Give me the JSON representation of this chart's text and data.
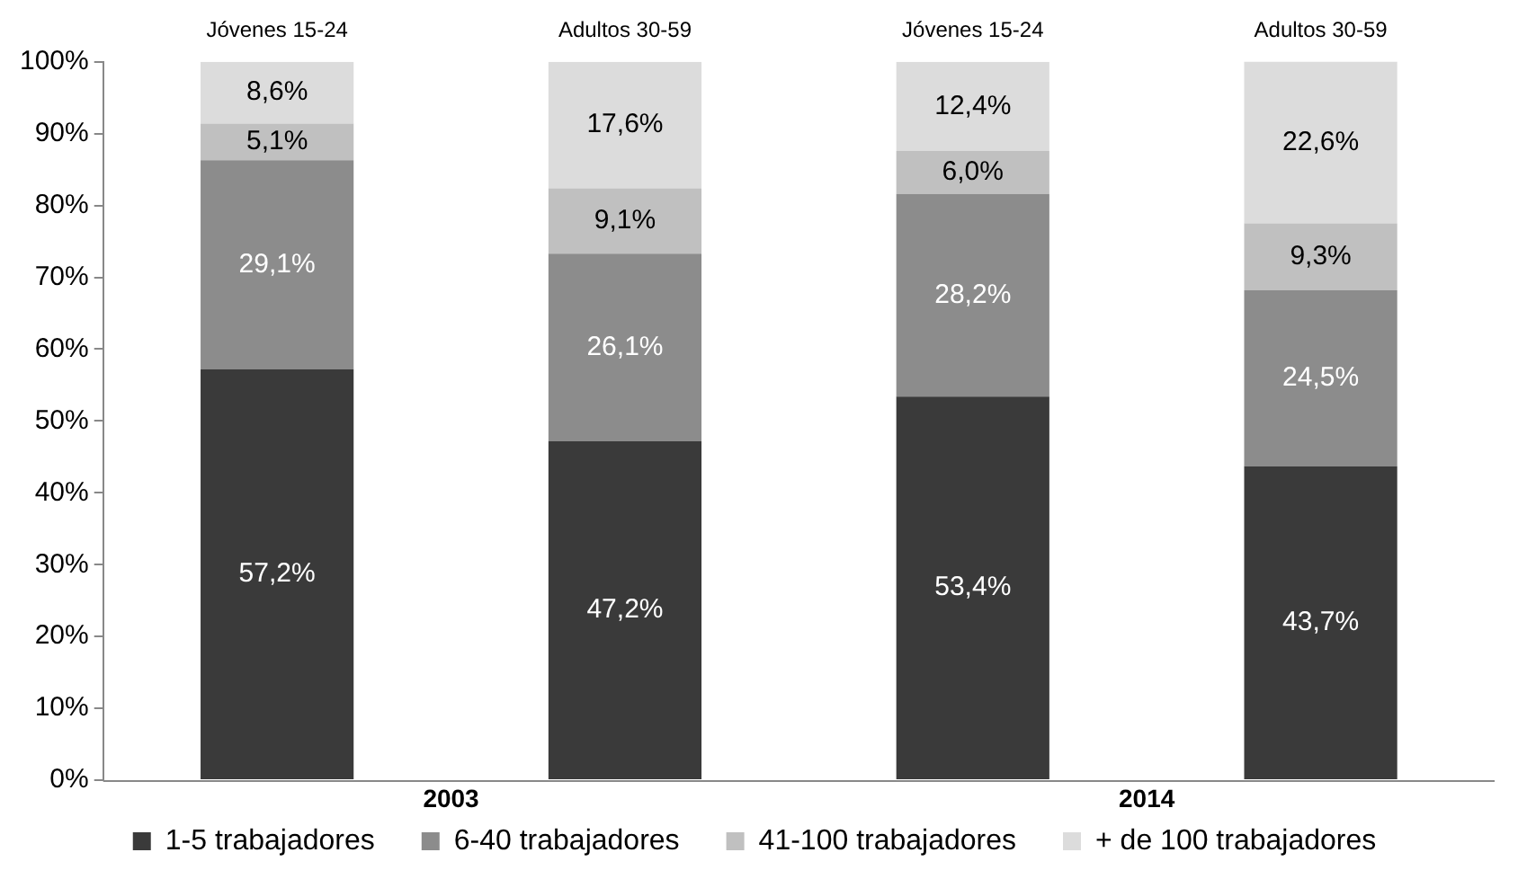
{
  "chart_data": {
    "type": "bar",
    "stacked": true,
    "categories": [
      "Jóvenes 15-24",
      "Adultos 30-59",
      "Jóvenes 15-24",
      "Adultos 30-59"
    ],
    "series": [
      {
        "name": "1-5 trabajadores",
        "color": "#3a3a3a",
        "values": [
          57.2,
          47.2,
          53.4,
          43.7
        ],
        "value_labels": [
          "57,2%",
          "47,2%",
          "53,4%",
          "43,7%"
        ]
      },
      {
        "name": "6-40 trabajadores",
        "color": "#8c8c8c",
        "values": [
          29.1,
          26.1,
          28.2,
          24.5
        ],
        "value_labels": [
          "29,1%",
          "26,1%",
          "28,2%",
          "24,5%"
        ]
      },
      {
        "name": "41-100 trabajadores",
        "color": "#c0c0c0",
        "values": [
          5.1,
          9.1,
          6.0,
          9.3
        ],
        "value_labels": [
          "5,1%",
          "9,1%",
          "6,0%",
          "9,3%"
        ]
      },
      {
        "name": "+ de 100 trabajadores",
        "color": "#dcdcdc",
        "values": [
          8.6,
          17.6,
          12.4,
          22.6
        ],
        "value_labels": [
          "8,6%",
          "17,6%",
          "12,4%",
          "22,6%"
        ]
      }
    ],
    "ylim": [
      0,
      100
    ],
    "yticks": [
      {
        "value": 0,
        "label": "0%"
      },
      {
        "value": 10,
        "label": "10%"
      },
      {
        "value": 20,
        "label": "20%"
      },
      {
        "value": 30,
        "label": "30%"
      },
      {
        "value": 40,
        "label": "40%"
      },
      {
        "value": 50,
        "label": "50%"
      },
      {
        "value": 60,
        "label": "60%"
      },
      {
        "value": 70,
        "label": "70%"
      },
      {
        "value": 80,
        "label": "80%"
      },
      {
        "value": 90,
        "label": "90%"
      },
      {
        "value": 100,
        "label": "100%"
      }
    ],
    "annotations": [
      "2003",
      "2014"
    ],
    "grid": false,
    "legend": "bottom"
  }
}
